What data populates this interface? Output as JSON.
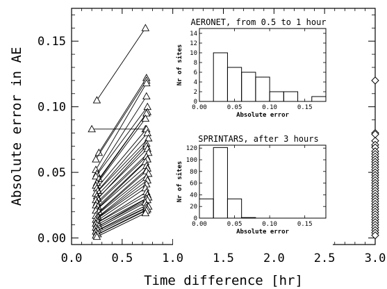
{
  "chart_data": [
    {
      "id": "main",
      "type": "scatter",
      "xlabel": "Time difference [hr]",
      "ylabel": "Absolute error in AE",
      "xlim": [
        0.0,
        3.0
      ],
      "ylim": [
        -0.005,
        0.175
      ],
      "xticks": [
        "0.0",
        "0.5",
        "1.0",
        "1.5",
        "2.0",
        "2.5",
        "3.0"
      ],
      "yticks": [
        "0.00",
        "0.05",
        "0.10",
        "0.15"
      ],
      "series": [
        {
          "marker": "triangle",
          "connected_pairs": [
            [
              0.25,
              0.105,
              0.73,
              0.16
            ],
            [
              0.2,
              0.083,
              0.73,
              0.083
            ],
            [
              0.27,
              0.065,
              0.74,
              0.122
            ],
            [
              0.24,
              0.06,
              0.74,
              0.12
            ],
            [
              0.24,
              0.052,
              0.74,
              0.118
            ],
            [
              0.25,
              0.049,
              0.74,
              0.108
            ],
            [
              0.24,
              0.047,
              0.75,
              0.1
            ],
            [
              0.27,
              0.045,
              0.75,
              0.096
            ],
            [
              0.25,
              0.042,
              0.74,
              0.095
            ],
            [
              0.24,
              0.04,
              0.73,
              0.091
            ],
            [
              0.25,
              0.038,
              0.74,
              0.083
            ],
            [
              0.26,
              0.036,
              0.75,
              0.08
            ],
            [
              0.24,
              0.034,
              0.76,
              0.076
            ],
            [
              0.25,
              0.032,
              0.74,
              0.072
            ],
            [
              0.26,
              0.03,
              0.74,
              0.07
            ],
            [
              0.24,
              0.029,
              0.75,
              0.068
            ],
            [
              0.25,
              0.027,
              0.76,
              0.065
            ],
            [
              0.24,
              0.025,
              0.74,
              0.062
            ],
            [
              0.26,
              0.024,
              0.75,
              0.06
            ],
            [
              0.25,
              0.022,
              0.73,
              0.058
            ],
            [
              0.24,
              0.021,
              0.74,
              0.055
            ],
            [
              0.27,
              0.02,
              0.75,
              0.053
            ],
            [
              0.25,
              0.018,
              0.74,
              0.051
            ],
            [
              0.24,
              0.017,
              0.76,
              0.049
            ],
            [
              0.26,
              0.016,
              0.74,
              0.046
            ],
            [
              0.25,
              0.015,
              0.75,
              0.044
            ],
            [
              0.24,
              0.014,
              0.74,
              0.041
            ],
            [
              0.25,
              0.013,
              0.73,
              0.038
            ],
            [
              0.26,
              0.012,
              0.74,
              0.035
            ],
            [
              0.24,
              0.011,
              0.75,
              0.033
            ],
            [
              0.25,
              0.01,
              0.76,
              0.031
            ],
            [
              0.27,
              0.009,
              0.74,
              0.03
            ],
            [
              0.24,
              0.008,
              0.75,
              0.029
            ],
            [
              0.25,
              0.007,
              0.73,
              0.027
            ],
            [
              0.26,
              0.006,
              0.74,
              0.025
            ],
            [
              0.24,
              0.005,
              0.76,
              0.024
            ],
            [
              0.25,
              0.004,
              0.74,
              0.023
            ],
            [
              0.26,
              0.003,
              0.75,
              0.022
            ],
            [
              0.24,
              0.002,
              0.74,
              0.021
            ],
            [
              0.25,
              0.001,
              0.73,
              0.019
            ]
          ]
        },
        {
          "marker": "diamond",
          "x": 3.0,
          "y": [
            0.12,
            0.08,
            0.079,
            0.074,
            0.071,
            0.069,
            0.066,
            0.064,
            0.062,
            0.06,
            0.058,
            0.056,
            0.054,
            0.052,
            0.05,
            0.048,
            0.046,
            0.044,
            0.042,
            0.04,
            0.038,
            0.036,
            0.034,
            0.032,
            0.03,
            0.028,
            0.026,
            0.024,
            0.022,
            0.02,
            0.018,
            0.016,
            0.014,
            0.012,
            0.01,
            0.008,
            0.006,
            0.004,
            0.002
          ]
        }
      ]
    },
    {
      "id": "inset-aeronet",
      "type": "bar",
      "title": "AERONET, from 0.5 to 1 hour",
      "xlabel": "Absolute error",
      "ylabel": "Nr of sites",
      "xlim": [
        0.0,
        0.18
      ],
      "ylim": [
        0,
        15
      ],
      "xticks": [
        "0.00",
        "0.05",
        "0.10",
        "0.15"
      ],
      "yticks": [
        "0",
        "2",
        "4",
        "6",
        "8",
        "10",
        "12",
        "14"
      ],
      "bin_edges": [
        0.0,
        0.02,
        0.04,
        0.06,
        0.08,
        0.1,
        0.12,
        0.14,
        0.16,
        0.18
      ],
      "values": [
        0,
        10,
        7,
        6,
        5,
        2,
        2,
        0,
        1
      ]
    },
    {
      "id": "inset-sprintars",
      "type": "bar",
      "title": "SPRINTARS, after 3 hours",
      "xlabel": "Absolute error",
      "ylabel": "Nr of sites",
      "xlim": [
        0.0,
        0.18
      ],
      "ylim": [
        0,
        125
      ],
      "xticks": [
        "0.00",
        "0.05",
        "0.10",
        "0.15"
      ],
      "yticks": [
        "0",
        "20",
        "40",
        "60",
        "80",
        "100",
        "120"
      ],
      "bin_edges": [
        0.0,
        0.02,
        0.04,
        0.06,
        0.08,
        0.1,
        0.12,
        0.14,
        0.16,
        0.18
      ],
      "values": [
        33,
        121,
        33,
        1,
        0,
        0,
        0,
        0,
        0
      ]
    }
  ]
}
